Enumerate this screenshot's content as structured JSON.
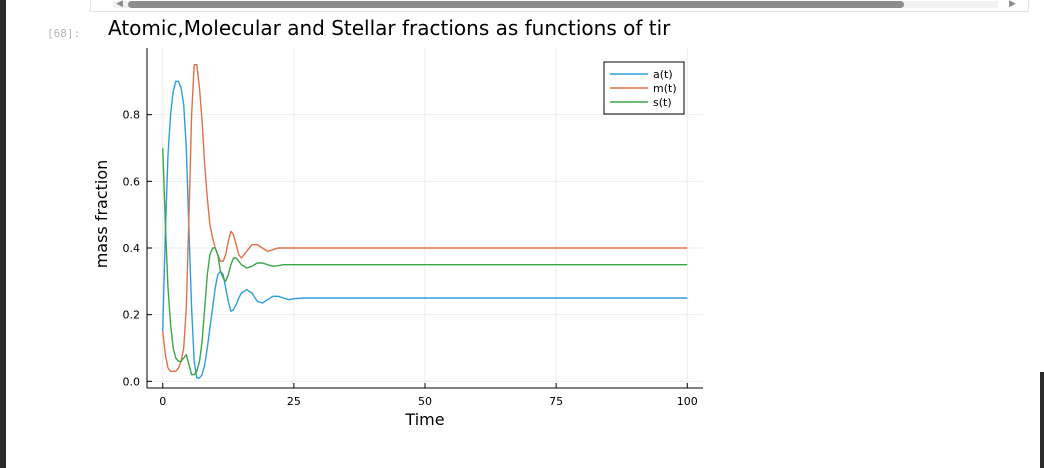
{
  "cell": {
    "prompt": "[68]:"
  },
  "scrollbar": {
    "left_arrow": "◀",
    "right_arrow": "▶"
  },
  "colors": {
    "a": "#2b9fd9",
    "m": "#e0704a",
    "s": "#3aa64a",
    "grid": "#ececec"
  },
  "chart_data": {
    "type": "line",
    "title": "Atomic,Molecular and Stellar fractions as functions of tir",
    "xlabel": "Time",
    "ylabel": "mass fraction",
    "xlim": [
      -3,
      103
    ],
    "ylim": [
      -0.02,
      1.0
    ],
    "xticks": [
      0,
      25,
      50,
      75,
      100
    ],
    "xtick_labels": [
      "0",
      "25",
      "50",
      "75",
      "100"
    ],
    "yticks": [
      0.0,
      0.2,
      0.4,
      0.6,
      0.8
    ],
    "ytick_labels": [
      "0.0",
      "0.2",
      "0.4",
      "0.6",
      "0.8"
    ],
    "grid": true,
    "legend_position": "top-right",
    "series": [
      {
        "name": "a(t)",
        "color": "#2b9fd9",
        "x": [
          0,
          0.5,
          1,
          1.5,
          2,
          2.5,
          3,
          3.5,
          4,
          4.5,
          5,
          5.5,
          6,
          6.5,
          7,
          7.5,
          8,
          8.5,
          9,
          9.5,
          10,
          10.5,
          11,
          11.5,
          12,
          12.5,
          13,
          13.5,
          14,
          14.5,
          15,
          16,
          17,
          18,
          19,
          20,
          21,
          22,
          23,
          24,
          25,
          27,
          30,
          35,
          40,
          50,
          60,
          80,
          100
        ],
        "values": [
          0.15,
          0.45,
          0.68,
          0.8,
          0.87,
          0.9,
          0.9,
          0.88,
          0.83,
          0.7,
          0.45,
          0.22,
          0.06,
          0.01,
          0.01,
          0.02,
          0.05,
          0.1,
          0.16,
          0.22,
          0.28,
          0.32,
          0.33,
          0.32,
          0.28,
          0.24,
          0.21,
          0.215,
          0.23,
          0.25,
          0.265,
          0.275,
          0.265,
          0.24,
          0.235,
          0.245,
          0.255,
          0.255,
          0.25,
          0.245,
          0.248,
          0.25,
          0.25,
          0.25,
          0.25,
          0.25,
          0.25,
          0.25,
          0.25
        ]
      },
      {
        "name": "m(t)",
        "color": "#e0704a",
        "x": [
          0,
          0.5,
          1,
          1.5,
          2,
          2.5,
          3,
          3.5,
          4,
          4.5,
          5,
          5.5,
          6,
          6.5,
          7,
          7.5,
          8,
          8.5,
          9,
          9.5,
          10,
          10.5,
          11,
          11.5,
          12,
          12.5,
          13,
          13.5,
          14,
          14.5,
          15,
          16,
          17,
          18,
          19,
          20,
          21,
          22,
          23,
          24,
          25,
          27,
          30,
          35,
          40,
          50,
          60,
          80,
          100
        ],
        "values": [
          0.15,
          0.08,
          0.04,
          0.03,
          0.03,
          0.03,
          0.04,
          0.06,
          0.1,
          0.22,
          0.5,
          0.8,
          0.95,
          0.95,
          0.88,
          0.78,
          0.65,
          0.55,
          0.47,
          0.43,
          0.4,
          0.38,
          0.36,
          0.36,
          0.38,
          0.42,
          0.45,
          0.44,
          0.41,
          0.38,
          0.37,
          0.39,
          0.41,
          0.41,
          0.4,
          0.39,
          0.395,
          0.4,
          0.4,
          0.4,
          0.4,
          0.4,
          0.4,
          0.4,
          0.4,
          0.4,
          0.4,
          0.4,
          0.4
        ]
      },
      {
        "name": "s(t)",
        "color": "#3aa64a",
        "x": [
          0,
          0.5,
          1,
          1.5,
          2,
          2.5,
          3,
          3.5,
          4,
          4.5,
          5,
          5.5,
          6,
          6.5,
          7,
          7.5,
          8,
          8.5,
          9,
          9.5,
          10,
          10.5,
          11,
          11.5,
          12,
          12.5,
          13,
          13.5,
          14,
          14.5,
          15,
          16,
          17,
          18,
          19,
          20,
          21,
          22,
          23,
          24,
          25,
          27,
          30,
          35,
          40,
          50,
          60,
          80,
          100
        ],
        "values": [
          0.7,
          0.47,
          0.28,
          0.17,
          0.1,
          0.07,
          0.06,
          0.06,
          0.07,
          0.08,
          0.05,
          0.02,
          0.02,
          0.03,
          0.06,
          0.12,
          0.22,
          0.32,
          0.38,
          0.4,
          0.4,
          0.38,
          0.33,
          0.31,
          0.3,
          0.32,
          0.35,
          0.37,
          0.37,
          0.36,
          0.35,
          0.34,
          0.345,
          0.355,
          0.355,
          0.35,
          0.345,
          0.347,
          0.35,
          0.35,
          0.35,
          0.35,
          0.35,
          0.35,
          0.35,
          0.35,
          0.35,
          0.35,
          0.35
        ]
      }
    ]
  }
}
